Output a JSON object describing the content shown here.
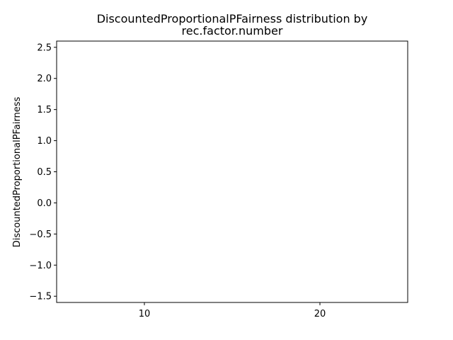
{
  "chart_data": {
    "type": "box",
    "title_lines": [
      "DiscountedProportionalPFairness distribution by",
      "rec.factor.number"
    ],
    "xlabel": "",
    "ylabel": "DiscountedProportionalPFairness",
    "categories": [
      "10",
      "20"
    ],
    "ylim": [
      -1.6,
      2.6
    ],
    "yticks": [
      -1.5,
      -1.0,
      -0.5,
      0.0,
      0.5,
      1.0,
      1.5,
      2.0,
      2.5
    ],
    "ytick_labels": [
      "−1.5",
      "−1.0",
      "−0.5",
      "0.0",
      "0.5",
      "1.0",
      "1.5",
      "2.0",
      "2.5"
    ],
    "grid": false,
    "legend": "none",
    "series": []
  }
}
